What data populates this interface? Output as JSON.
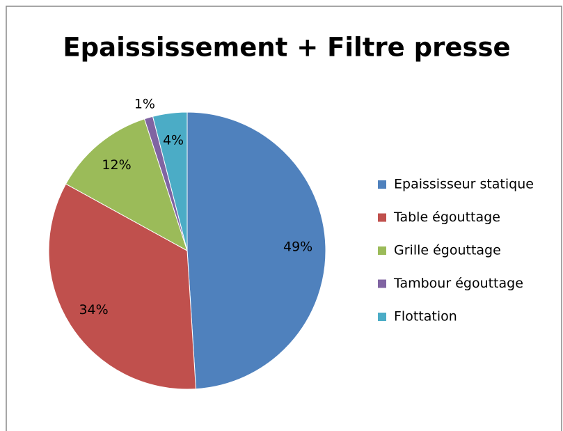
{
  "chart_data": {
    "type": "pie",
    "title": "Epaississement + Filtre presse",
    "categories": [
      "Epaississeur statique",
      "Table égouttage",
      "Grille égouttage",
      "Tambour égouttage",
      "Flottation"
    ],
    "values": [
      49,
      34,
      12,
      1,
      4
    ],
    "value_labels": [
      "49%",
      "34%",
      "12%",
      "1%",
      "4%"
    ],
    "colors": [
      "#4f81bd",
      "#c0504d",
      "#9bbb59",
      "#8064a2",
      "#4bacc6"
    ],
    "legend": "right"
  }
}
